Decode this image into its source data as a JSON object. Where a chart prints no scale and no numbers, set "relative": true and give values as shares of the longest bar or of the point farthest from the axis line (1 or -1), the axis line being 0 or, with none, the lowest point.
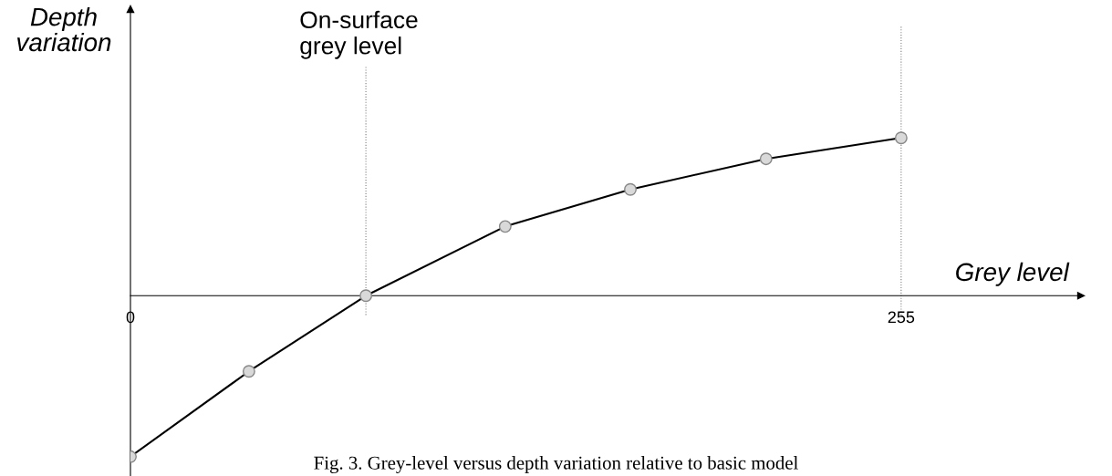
{
  "chart_data": {
    "type": "line",
    "relative": true,
    "xlabel": "Grey level",
    "ylabel": "Depth\nvariation",
    "x": [
      0,
      39.2,
      77.9,
      124,
      165.4,
      210.3,
      255
    ],
    "series": [
      {
        "color": "#000000",
        "values": [
          -1,
          -0.47,
          0,
          0.43,
          0.66,
          0.85,
          0.98
        ]
      }
    ],
    "xlim": [
      0,
      314.5
    ],
    "xticks": [
      0,
      255
    ],
    "marker": "circle",
    "line_style": "solid",
    "grid": false,
    "ref_lines": [
      {
        "axis": "x",
        "value": 77.9,
        "label": "On-surface\ngrey level",
        "line_style": "dotted",
        "color": "#808080"
      },
      {
        "axis": "x",
        "value": 255,
        "label": null,
        "line_style": "dotted",
        "color": "#808080"
      }
    ],
    "annotations": [
      "Fig. 3. Grey-level versus depth variation relative to basic model"
    ]
  }
}
